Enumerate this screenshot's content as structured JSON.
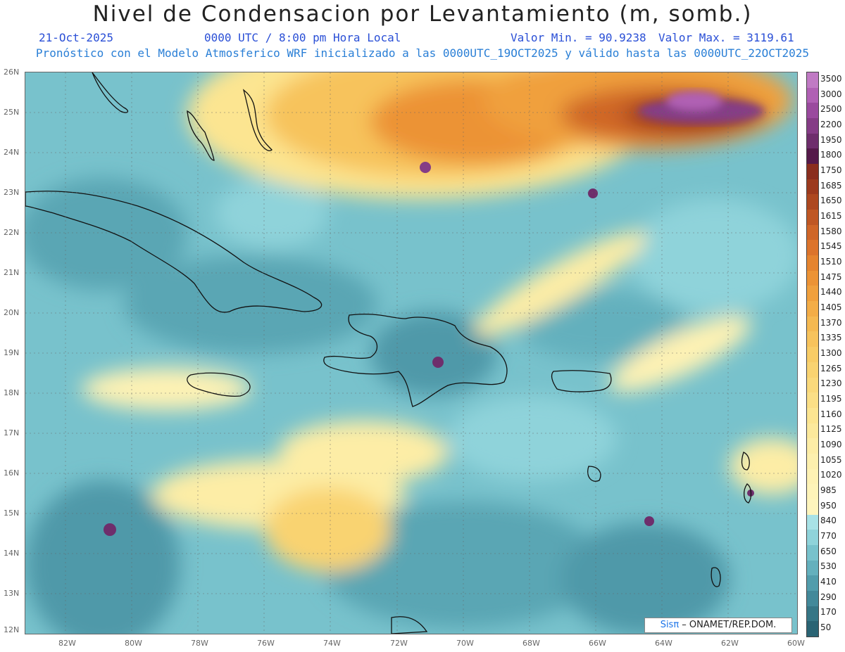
{
  "header": {
    "title": "Nivel de Condensacion por Levantamiento (m, somb.)",
    "date": "21-Oct-2025",
    "time": "0000 UTC / 8:00 pm Hora Local",
    "vmin": "Valor Min. = 90.9238",
    "vmax": "Valor Max. = 3119.61",
    "subtitle": "Pronóstico con el Modelo Atmosferico WRF inicializado a las 0000UTC_19OCT2025 y válido hasta las  0000UTC_22OCT2025"
  },
  "map": {
    "lat_labels": [
      "26N",
      "25N",
      "24N",
      "23N",
      "22N",
      "21N",
      "20N",
      "19N",
      "18N",
      "17N",
      "16N",
      "15N",
      "14N",
      "13N",
      "12N"
    ],
    "lon_labels": [
      "82W",
      "80W",
      "78W",
      "76W",
      "74W",
      "72W",
      "70W",
      "68W",
      "66W",
      "64W",
      "62W",
      "60W"
    ],
    "lat_range": [
      12,
      26
    ],
    "lon_range": [
      -83.2,
      -60
    ]
  },
  "colorbar": {
    "labels": [
      "3500",
      "3000",
      "2500",
      "2200",
      "1950",
      "1800",
      "1750",
      "1685",
      "1650",
      "1615",
      "1580",
      "1545",
      "1510",
      "1475",
      "1440",
      "1405",
      "1370",
      "1335",
      "1300",
      "1265",
      "1230",
      "1195",
      "1160",
      "1125",
      "1090",
      "1055",
      "1020",
      "985",
      "950",
      "840",
      "770",
      "650",
      "530",
      "410",
      "290",
      "170",
      "50"
    ],
    "colors": [
      "#c07ac4",
      "#b060b4",
      "#9a4a9e",
      "#853c86",
      "#6e2e6c",
      "#551a4a",
      "#8a2e1e",
      "#9c3a1e",
      "#ad4820",
      "#bf5724",
      "#cf6628",
      "#dc742c",
      "#e5842f",
      "#ec9335",
      "#f0a03d",
      "#f3ad47",
      "#f5b951",
      "#f7c35c",
      "#f8cc66",
      "#f9d371",
      "#fad97b",
      "#fbdf86",
      "#fce591",
      "#fce99c",
      "#fdeda6",
      "#fdf0ae",
      "#fef2b4",
      "#fef4b9",
      "#fef5bd",
      "#a8e2e6",
      "#8fd3da",
      "#78c2cc",
      "#64b0bd",
      "#529dac",
      "#43899a",
      "#367686",
      "#2a6474"
    ]
  },
  "credit": {
    "brand": "Sisπ",
    "rest": " – ONAMET/REP.DOM."
  }
}
